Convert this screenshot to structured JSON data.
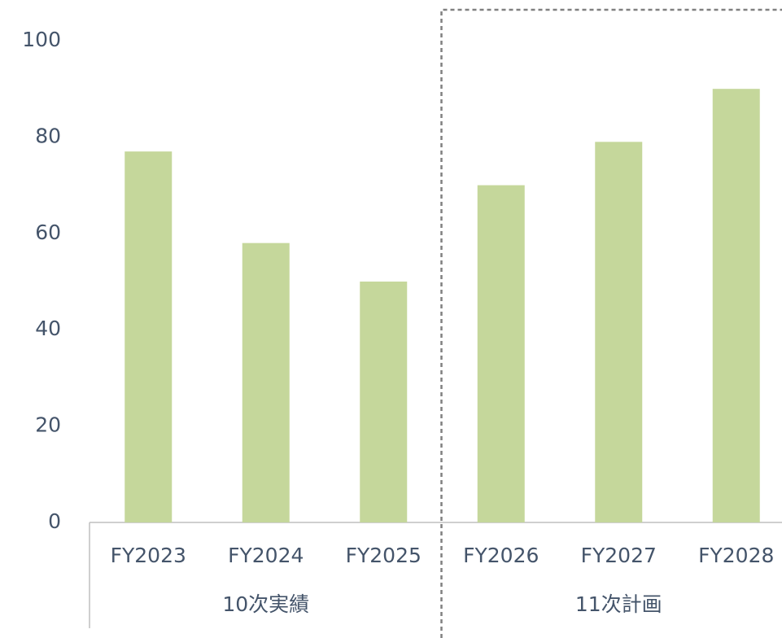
{
  "chart_data": {
    "type": "bar",
    "categories": [
      "FY2023",
      "FY2024",
      "FY2025",
      "FY2026",
      "FY2027",
      "FY2028"
    ],
    "values": [
      77,
      58,
      50,
      70,
      79,
      90
    ],
    "groups": [
      "10次実績",
      "11次計画"
    ],
    "color": "#c5d79b",
    "ylim": [
      0,
      100
    ],
    "yticks": [
      0,
      20,
      40,
      60,
      80,
      100
    ],
    "grid": false
  }
}
